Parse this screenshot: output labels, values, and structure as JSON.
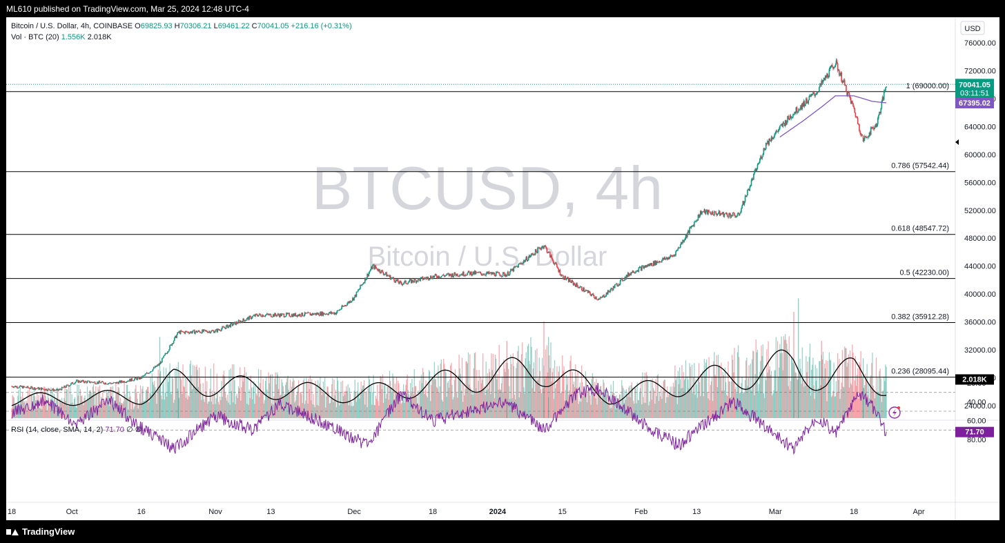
{
  "header": {
    "publisher": "ML610 published on TradingView.com, Mar 25, 2024 12:48 UTC-4"
  },
  "footer": {
    "brand": "TradingView"
  },
  "legend": {
    "symbol": "Bitcoin / U.S. Dollar, 4h, COINBASE",
    "o_label": "O",
    "o": "69825.93",
    "h_label": "H",
    "h": "70306.21",
    "l_label": "L",
    "l": "69461.22",
    "c_label": "C",
    "c": "70041.05",
    "change": "+216.16 (+0.31%)",
    "vol_label": "Vol · BTC (20)",
    "vol_value": "1.556K",
    "vol_ma": "2.018K",
    "rsi_label": "RSI (14, close, SMA, 14, 2)",
    "rsi_value": "71.70",
    "rsi_extra1": "∅",
    "rsi_extra2": "∅"
  },
  "watermark": {
    "title": "BTCUSD, 4h",
    "subtitle": "Bitcoin / U.S. Dollar"
  },
  "chart_data": {
    "type": "line",
    "currency_label": "USD",
    "price_axis": {
      "ticks": [
        "76000.00",
        "72000.00",
        "68000.00",
        "64000.00",
        "60000.00",
        "56000.00",
        "52000.00",
        "48000.00",
        "44000.00",
        "40000.00",
        "36000.00",
        "32000.00",
        "28000.00",
        "24000.00"
      ],
      "ylim": [
        20000,
        78000
      ]
    },
    "rsi_axis": {
      "ticks": [
        "80.00",
        "60.00",
        "40.00",
        "20.00"
      ],
      "ylim": [
        15,
        100
      ],
      "band": [
        30,
        70
      ],
      "mid": 50
    },
    "x_ticks": [
      "18",
      "Oct",
      "16",
      "Nov",
      "13",
      "Dec",
      "18",
      "2024",
      "15",
      "Feb",
      "13",
      "Mar",
      "18",
      "Apr"
    ],
    "fib_levels": [
      {
        "label": "1 (69000.00)",
        "price": 69000
      },
      {
        "label": "0.786 (57542.44)",
        "price": 57542.44
      },
      {
        "label": "0.618 (48547.72)",
        "price": 48547.72
      },
      {
        "label": "0.5 (42230.00)",
        "price": 42230
      },
      {
        "label": "0.382 (35912.28)",
        "price": 35912.28
      },
      {
        "label": "0.236 (28095.44)",
        "price": 28095.44
      }
    ],
    "price_badges": {
      "last": "70041.05",
      "countdown": "03:11:51",
      "ma": "67395.02",
      "vol": "2.018K",
      "rsi": "71.70"
    },
    "colors": {
      "up": "#089981",
      "down": "#f23645",
      "ma": "#7e57c2",
      "rsi": "#7e1f9e",
      "rsi_band": "#f3e5fb",
      "fib": "#000000",
      "last": "#089981",
      "watermark": "#b2b5be"
    },
    "price_series": [
      {
        "date": "2023-09-18",
        "close": 26800
      },
      {
        "date": "2023-09-28",
        "close": 26200
      },
      {
        "date": "2023-10-02",
        "close": 27500
      },
      {
        "date": "2023-10-10",
        "close": 27200
      },
      {
        "date": "2023-10-16",
        "close": 28000
      },
      {
        "date": "2023-10-20",
        "close": 30000
      },
      {
        "date": "2023-10-24",
        "close": 34500
      },
      {
        "date": "2023-11-01",
        "close": 34700
      },
      {
        "date": "2023-11-10",
        "close": 37000
      },
      {
        "date": "2023-11-18",
        "close": 37000
      },
      {
        "date": "2023-11-27",
        "close": 37300
      },
      {
        "date": "2023-12-01",
        "close": 39500
      },
      {
        "date": "2023-12-05",
        "close": 44000
      },
      {
        "date": "2023-12-11",
        "close": 41500
      },
      {
        "date": "2023-12-18",
        "close": 42500
      },
      {
        "date": "2023-12-26",
        "close": 43000
      },
      {
        "date": "2024-01-03",
        "close": 42800
      },
      {
        "date": "2024-01-11",
        "close": 47000
      },
      {
        "date": "2024-01-15",
        "close": 42500
      },
      {
        "date": "2024-01-23",
        "close": 39200
      },
      {
        "date": "2024-01-30",
        "close": 43200
      },
      {
        "date": "2024-02-08",
        "close": 45500
      },
      {
        "date": "2024-02-14",
        "close": 51800
      },
      {
        "date": "2024-02-22",
        "close": 51200
      },
      {
        "date": "2024-02-28",
        "close": 61500
      },
      {
        "date": "2024-03-05",
        "close": 66000
      },
      {
        "date": "2024-03-10",
        "close": 69000
      },
      {
        "date": "2024-03-14",
        "close": 73200
      },
      {
        "date": "2024-03-18",
        "close": 66500
      },
      {
        "date": "2024-03-20",
        "close": 62000
      },
      {
        "date": "2024-03-23",
        "close": 64500
      },
      {
        "date": "2024-03-25",
        "close": 70041.05
      }
    ],
    "ma_series": [
      {
        "date": "2024-03-02",
        "value": 62500
      },
      {
        "date": "2024-03-07",
        "value": 64800
      },
      {
        "date": "2024-03-11",
        "value": 66800
      },
      {
        "date": "2024-03-14",
        "value": 68400
      },
      {
        "date": "2024-03-18",
        "value": 68400
      },
      {
        "date": "2024-03-22",
        "value": 67600
      },
      {
        "date": "2024-03-25",
        "value": 67395.02
      }
    ],
    "rsi_series": [
      {
        "date": "2023-09-18",
        "value": 52
      },
      {
        "date": "2023-09-25",
        "value": 38
      },
      {
        "date": "2023-10-02",
        "value": 65
      },
      {
        "date": "2023-10-09",
        "value": 38
      },
      {
        "date": "2023-10-16",
        "value": 68
      },
      {
        "date": "2023-10-23",
        "value": 90
      },
      {
        "date": "2023-11-01",
        "value": 55
      },
      {
        "date": "2023-11-09",
        "value": 70
      },
      {
        "date": "2023-11-15",
        "value": 42
      },
      {
        "date": "2023-11-24",
        "value": 62
      },
      {
        "date": "2023-12-04",
        "value": 86
      },
      {
        "date": "2023-12-11",
        "value": 32
      },
      {
        "date": "2023-12-18",
        "value": 60
      },
      {
        "date": "2024-01-03",
        "value": 40
      },
      {
        "date": "2024-01-11",
        "value": 70
      },
      {
        "date": "2024-01-18",
        "value": 32
      },
      {
        "date": "2024-01-23",
        "value": 25
      },
      {
        "date": "2024-02-01",
        "value": 62
      },
      {
        "date": "2024-02-09",
        "value": 86
      },
      {
        "date": "2024-02-21",
        "value": 40
      },
      {
        "date": "2024-03-05",
        "value": 90
      },
      {
        "date": "2024-03-10",
        "value": 55
      },
      {
        "date": "2024-03-14",
        "value": 74
      },
      {
        "date": "2024-03-19",
        "value": 32
      },
      {
        "date": "2024-03-22",
        "value": 45
      },
      {
        "date": "2024-03-25",
        "value": 71.7
      }
    ],
    "volume_ma": [
      {
        "date": "2023-09-18",
        "value": 1.1
      },
      {
        "date": "2023-10-16",
        "value": 1.3
      },
      {
        "date": "2023-10-23",
        "value": 2.2
      },
      {
        "date": "2023-12-01",
        "value": 1.4
      },
      {
        "date": "2024-01-11",
        "value": 3.0
      },
      {
        "date": "2024-01-25",
        "value": 1.3
      },
      {
        "date": "2024-03-05",
        "value": 3.2
      },
      {
        "date": "2024-03-12",
        "value": 2.3
      },
      {
        "date": "2024-03-18",
        "value": 2.8
      },
      {
        "date": "2024-03-25",
        "value": 2.018
      }
    ],
    "volume_highlights": [
      {
        "date": "2023-10-20",
        "value": 4.2,
        "dir": "up"
      },
      {
        "date": "2023-10-24",
        "value": 2.9,
        "dir": "up"
      },
      {
        "date": "2024-01-03",
        "value": 4.0,
        "dir": "down"
      },
      {
        "date": "2024-01-11",
        "value": 5.0,
        "dir": "down"
      },
      {
        "date": "2024-01-12",
        "value": 4.2,
        "dir": "up"
      },
      {
        "date": "2024-03-05",
        "value": 5.5,
        "dir": "down"
      },
      {
        "date": "2024-03-06",
        "value": 6.2,
        "dir": "up"
      },
      {
        "date": "2024-03-11",
        "value": 4.0,
        "dir": "down"
      },
      {
        "date": "2024-03-20",
        "value": 3.1,
        "dir": "up"
      }
    ]
  }
}
